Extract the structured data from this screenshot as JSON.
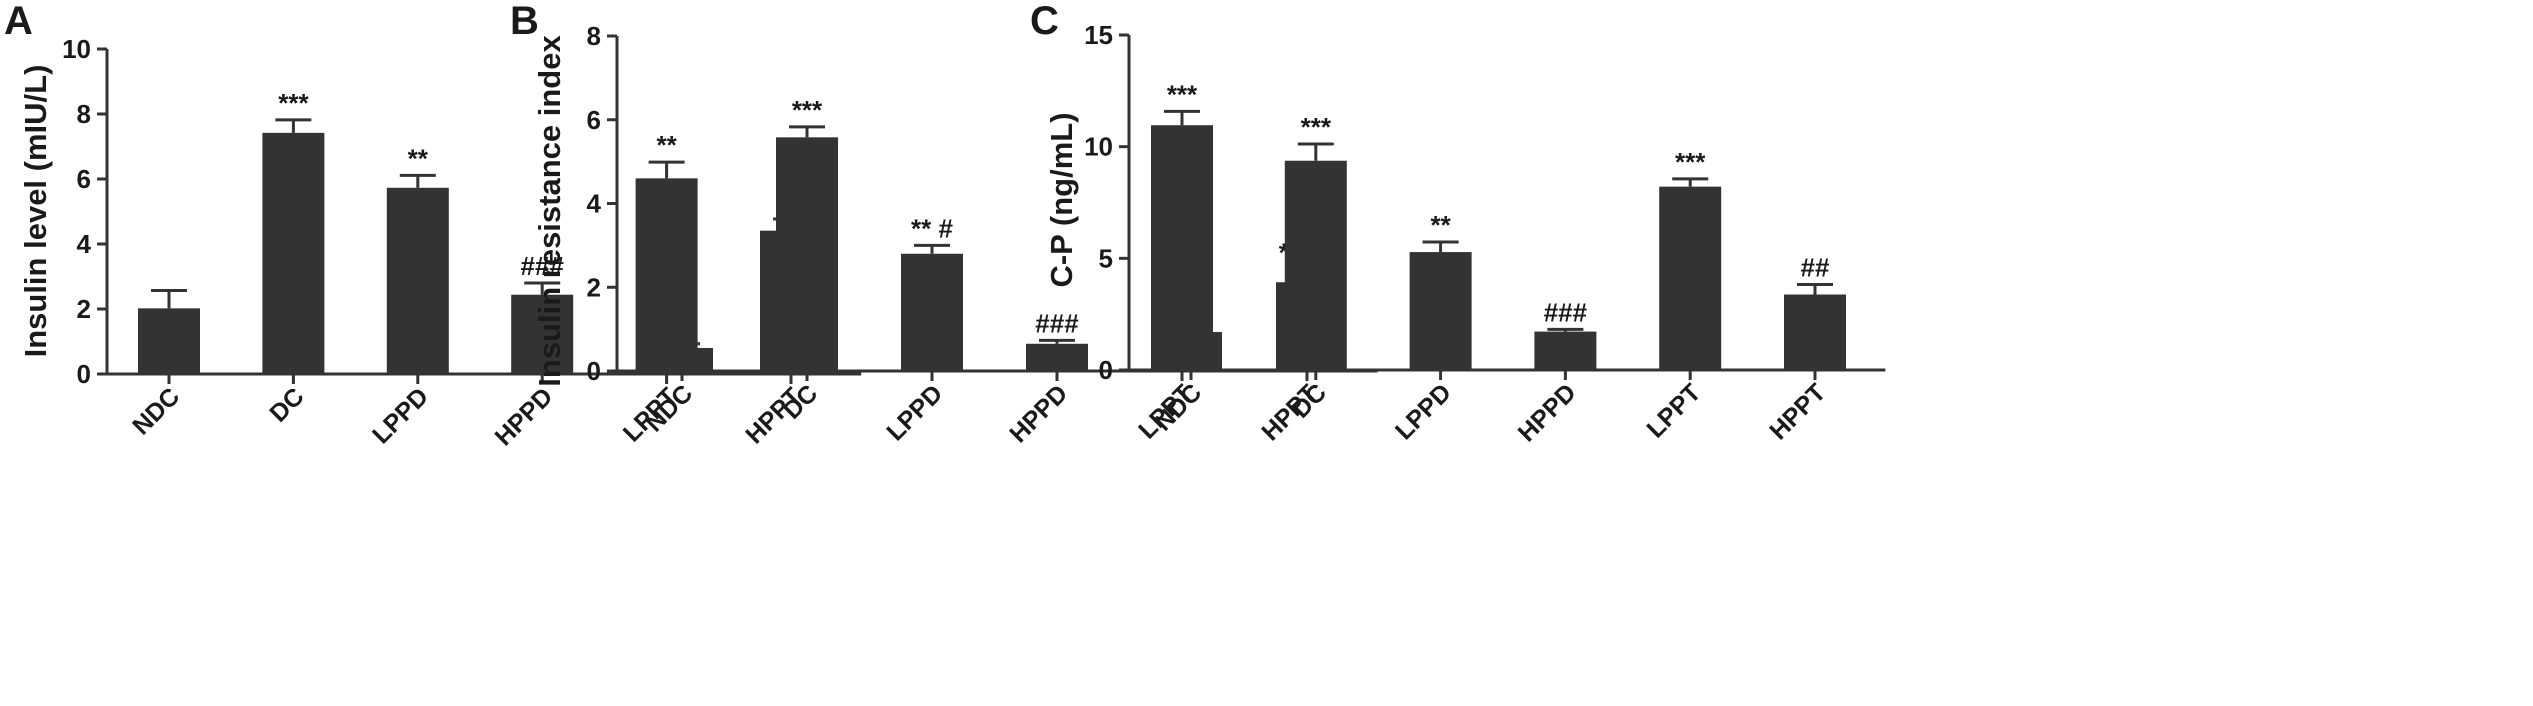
{
  "chart_data": [
    {
      "panel": "A",
      "type": "bar",
      "title": "",
      "xlabel": "",
      "ylabel": "Insulin level (mIU/L)",
      "categories": [
        "NDC",
        "DC",
        "LPPD",
        "HPPD",
        "LPPT",
        "HPPT"
      ],
      "values": [
        2.02,
        7.42,
        5.73,
        2.44,
        6.02,
        4.41
      ],
      "errors": [
        0.55,
        0.4,
        0.38,
        0.36,
        0.5,
        0.36
      ],
      "annotations": [
        "",
        "***",
        "**",
        "###",
        "**",
        "##"
      ],
      "ylim": [
        0,
        10
      ],
      "yticks": [
        0,
        2,
        4,
        6,
        8,
        10
      ],
      "color": "#333333"
    },
    {
      "panel": "B",
      "type": "bar",
      "title": "",
      "xlabel": "",
      "ylabel": "Insulin resistance index",
      "categories": [
        "NDC",
        "DC",
        "LPPD",
        "HPPD",
        "LPPT",
        "HPPT"
      ],
      "values": [
        0.55,
        5.58,
        2.8,
        0.65,
        5.87,
        2.12
      ],
      "errors": [
        0.1,
        0.25,
        0.2,
        0.08,
        0.33,
        0.3
      ],
      "annotations": [
        "",
        "***",
        "** #",
        "###",
        "***",
        "** ##"
      ],
      "ylim": [
        0,
        8
      ],
      "yticks": [
        0,
        2,
        4,
        6,
        8
      ],
      "color": "#333333"
    },
    {
      "panel": "C",
      "type": "bar",
      "title": "",
      "xlabel": "",
      "ylabel": "C-P (ng/mL)",
      "categories": [
        "NDC",
        "DC",
        "LPPD",
        "HPPD",
        "LPPT",
        "HPPT"
      ],
      "values": [
        1.7,
        9.37,
        5.28,
        1.72,
        8.21,
        3.38
      ],
      "errors": [
        0.1,
        0.75,
        0.45,
        0.1,
        0.35,
        0.45
      ],
      "annotations": [
        "",
        "***",
        "**",
        "###",
        "***",
        "##"
      ],
      "ylim": [
        0,
        15
      ],
      "yticks": [
        0,
        5,
        10,
        15
      ],
      "color": "#333333"
    }
  ]
}
